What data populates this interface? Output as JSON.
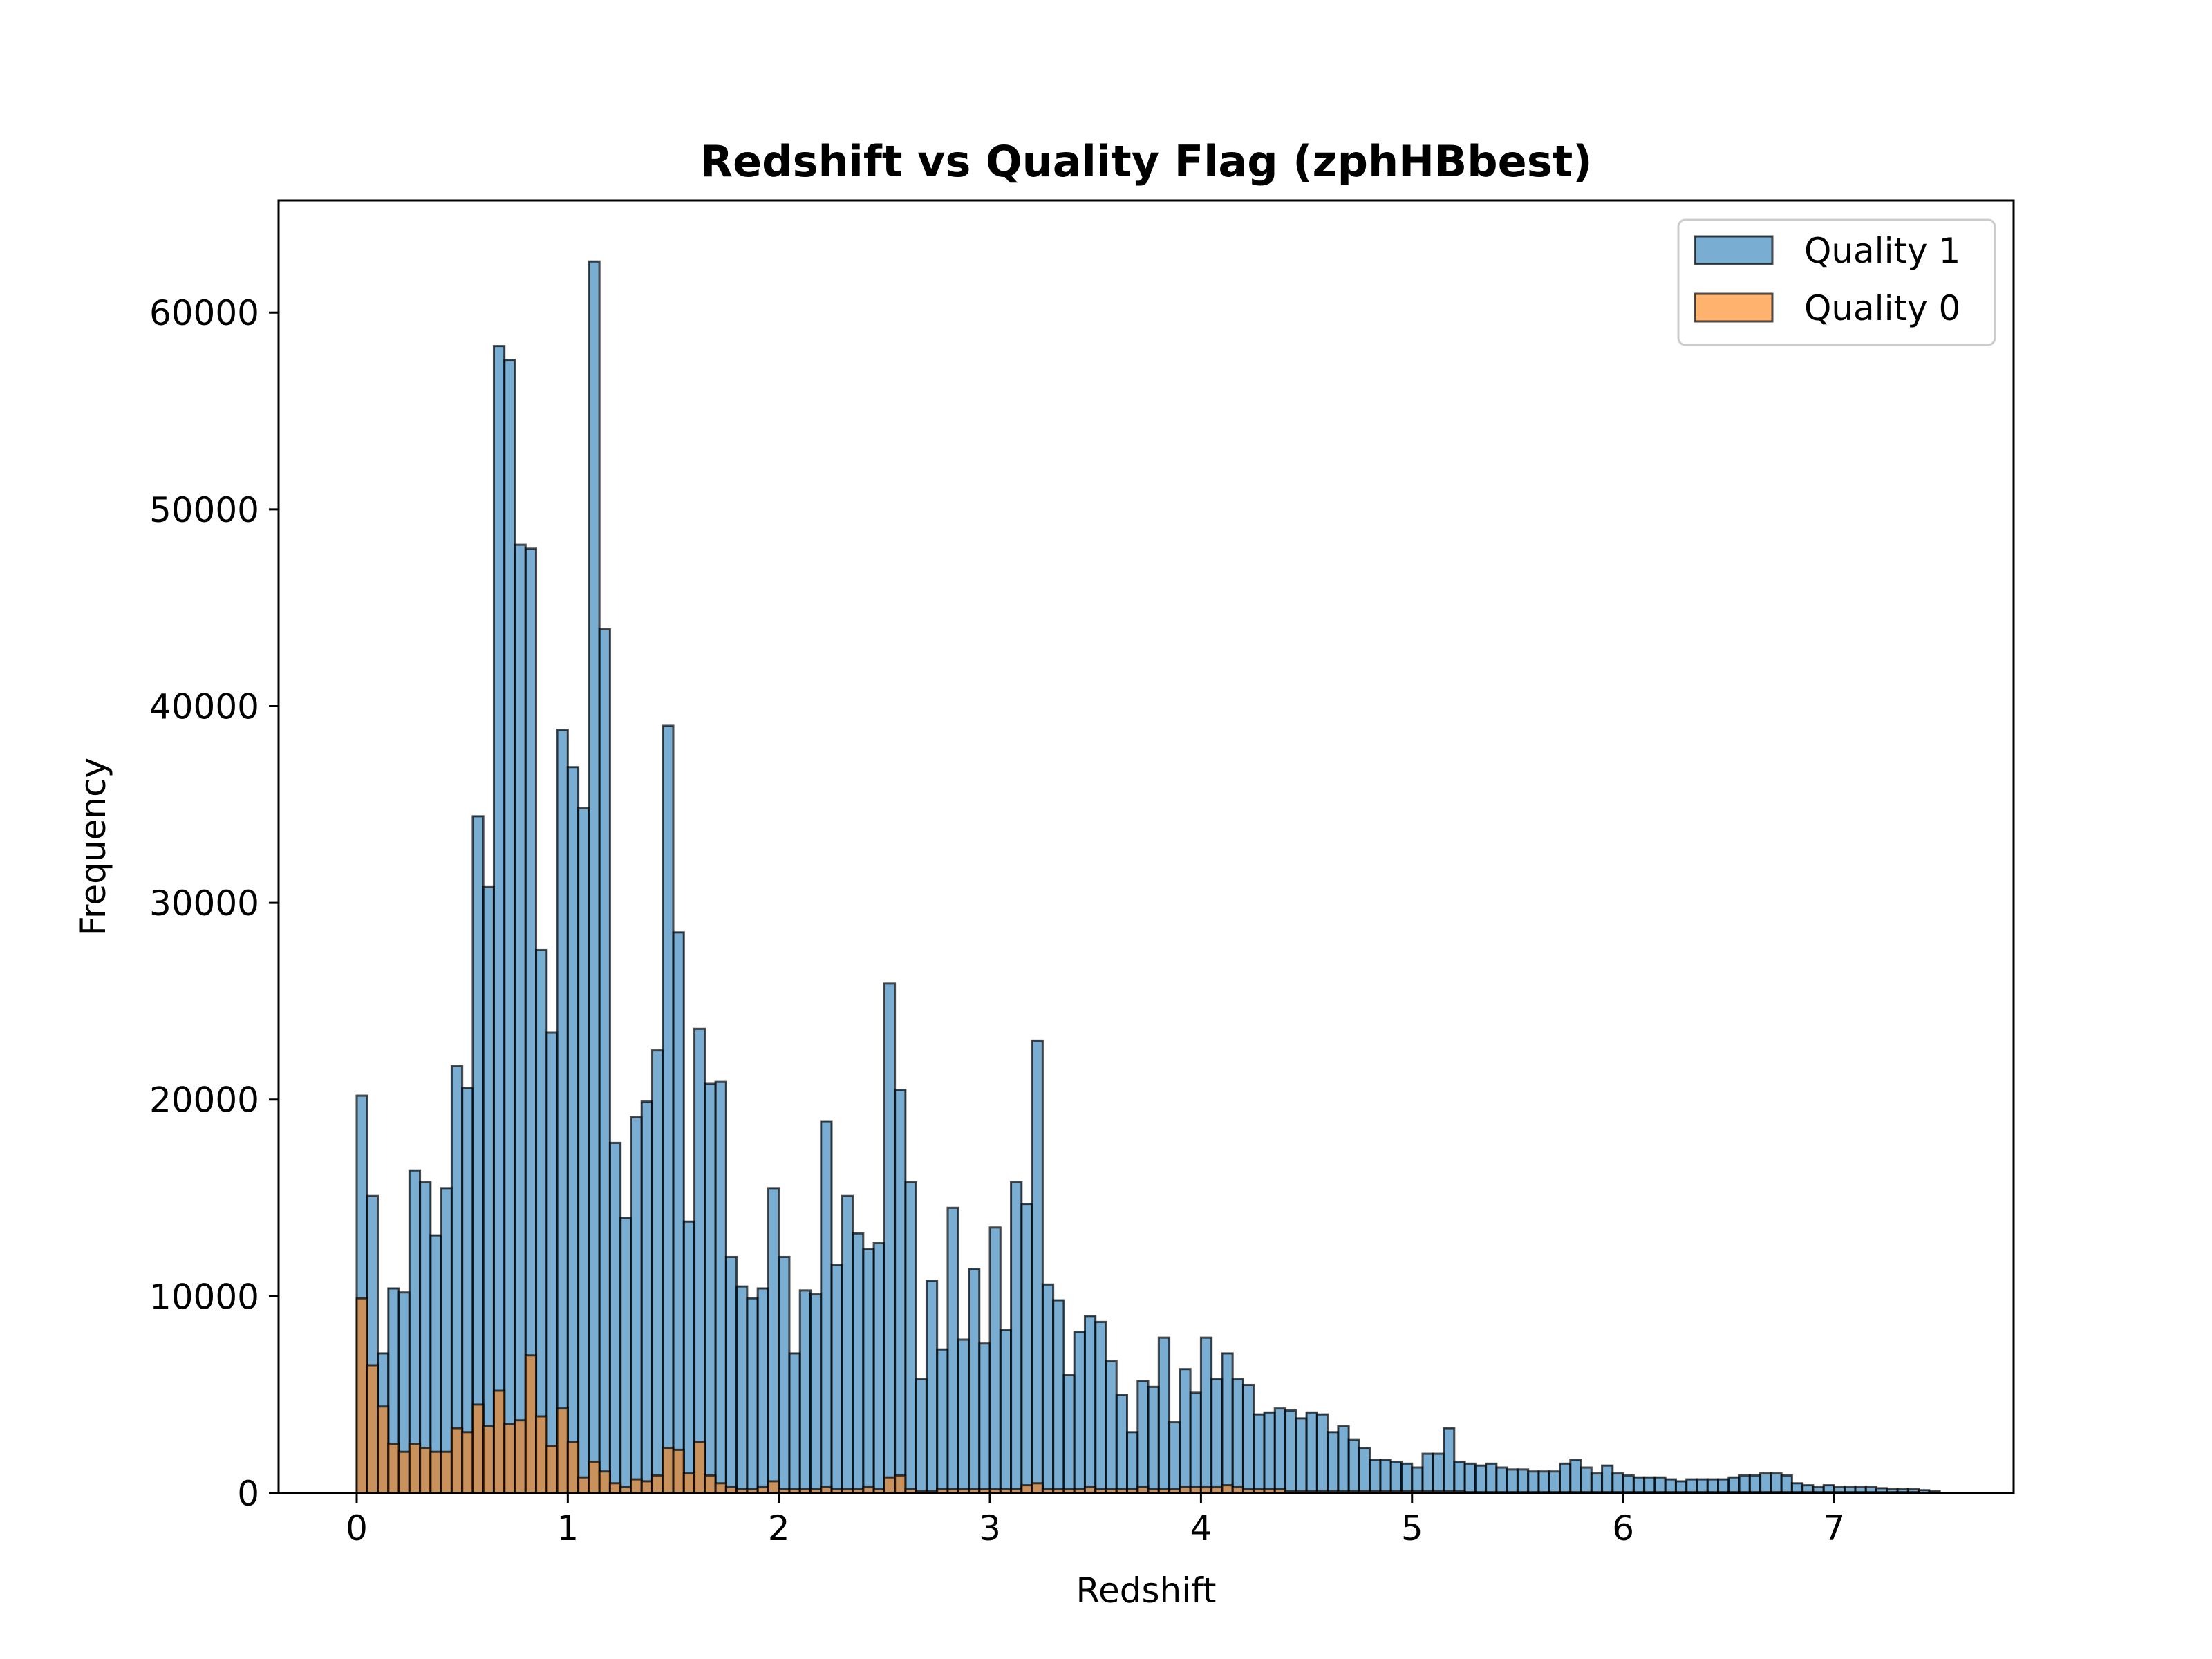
{
  "chart_data": {
    "type": "bar",
    "title": "Redshift vs Quality Flag (zphHBbest)",
    "xlabel": "Redshift",
    "ylabel": "Frequency",
    "xlim": [
      -0.37,
      7.85
    ],
    "ylim": [
      0,
      65700
    ],
    "bin_start": 0.0,
    "bin_width": 0.05,
    "xticks": [
      0,
      1,
      2,
      3,
      4,
      5,
      6,
      7
    ],
    "yticks": [
      0,
      10000,
      20000,
      30000,
      40000,
      50000,
      60000
    ],
    "grid": false,
    "legend_position": "top-right",
    "series": [
      {
        "name": "Quality 1",
        "color": "#1f77b4",
        "values": [
          20200,
          15100,
          7100,
          10400,
          10200,
          16400,
          15800,
          13100,
          15500,
          21700,
          20600,
          34400,
          30800,
          58300,
          57600,
          48200,
          48000,
          27600,
          23400,
          38800,
          36900,
          34800,
          62600,
          43900,
          17800,
          14000,
          19100,
          19900,
          22500,
          39000,
          28500,
          13800,
          23600,
          20800,
          20900,
          12000,
          10500,
          9900,
          10400,
          15500,
          12000,
          7100,
          10300,
          10100,
          18900,
          11600,
          15100,
          13200,
          12400,
          12700,
          25900,
          20500,
          15800,
          5800,
          10800,
          7300,
          14500,
          7800,
          11400,
          7600,
          13500,
          8300,
          15800,
          14700,
          23000,
          10600,
          9800,
          6000,
          8200,
          9000,
          8700,
          6700,
          5000,
          3100,
          5700,
          5400,
          7900,
          3600,
          6300,
          5100,
          7900,
          5800,
          7100,
          5800,
          5500,
          4000,
          4100,
          4300,
          4200,
          3800,
          4100,
          4000,
          3100,
          3400,
          2700,
          2300,
          1700,
          1700,
          1600,
          1500,
          1300,
          2000,
          2000,
          3300,
          1600,
          1500,
          1400,
          1500,
          1300,
          1200,
          1200,
          1100,
          1100,
          1100,
          1500,
          1700,
          1300,
          1000,
          1400,
          1000,
          900,
          800,
          800,
          800,
          700,
          600,
          700,
          700,
          700,
          700,
          800,
          900,
          900,
          1000,
          1000,
          900,
          500,
          400,
          300,
          400,
          300,
          300,
          300,
          300,
          250,
          200,
          200,
          200,
          150,
          100
        ]
      },
      {
        "name": "Quality 0",
        "color": "#ff7f0e",
        "values": [
          9900,
          6500,
          4400,
          2500,
          2100,
          2500,
          2300,
          2100,
          2100,
          3300,
          3100,
          4500,
          3400,
          5200,
          3500,
          3700,
          7000,
          3900,
          2400,
          4300,
          2600,
          800,
          1600,
          1100,
          500,
          300,
          700,
          600,
          900,
          2300,
          2200,
          1000,
          2600,
          900,
          500,
          300,
          200,
          200,
          300,
          600,
          200,
          200,
          200,
          200,
          300,
          200,
          200,
          200,
          300,
          200,
          800,
          900,
          200,
          100,
          100,
          200,
          200,
          200,
          200,
          200,
          200,
          200,
          200,
          400,
          500,
          200,
          200,
          200,
          200,
          300,
          200,
          200,
          200,
          200,
          300,
          200,
          200,
          200,
          300,
          300,
          300,
          300,
          400,
          300,
          200,
          200,
          200,
          200,
          100,
          100,
          100,
          100,
          100,
          100,
          100,
          100,
          100,
          100,
          100,
          100,
          100,
          100,
          100,
          100,
          100,
          50,
          50,
          50,
          50,
          50,
          50,
          50,
          50,
          50,
          50,
          50,
          50,
          50,
          50,
          50,
          50,
          50,
          50,
          50,
          50,
          50,
          50,
          50,
          50,
          50,
          50,
          50,
          50,
          50,
          50,
          50,
          50,
          50,
          50,
          50,
          50,
          50,
          50,
          50,
          50,
          50,
          50,
          50
        ]
      }
    ]
  }
}
